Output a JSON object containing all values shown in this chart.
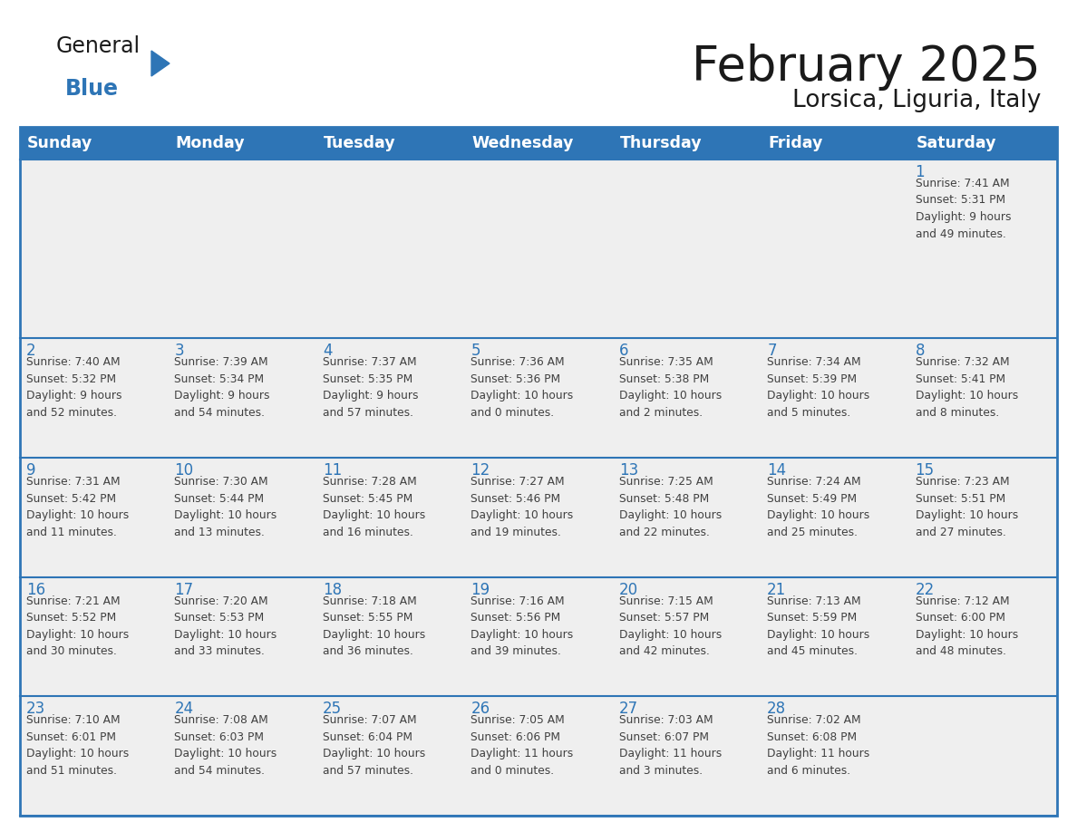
{
  "title": "February 2025",
  "subtitle": "Lorsica, Liguria, Italy",
  "days_of_week": [
    "Sunday",
    "Monday",
    "Tuesday",
    "Wednesday",
    "Thursday",
    "Friday",
    "Saturday"
  ],
  "header_bg": "#2E75B6",
  "header_text": "#FFFFFF",
  "cell_bg": "#EFEFEF",
  "cell_bg_white": "#FFFFFF",
  "border_color": "#2E75B6",
  "day_number_color": "#2E75B6",
  "info_text_color": "#404040",
  "title_color": "#1a1a1a",
  "weeks": [
    [
      {
        "day": null,
        "info": ""
      },
      {
        "day": null,
        "info": ""
      },
      {
        "day": null,
        "info": ""
      },
      {
        "day": null,
        "info": ""
      },
      {
        "day": null,
        "info": ""
      },
      {
        "day": null,
        "info": ""
      },
      {
        "day": 1,
        "info": "Sunrise: 7:41 AM\nSunset: 5:31 PM\nDaylight: 9 hours\nand 49 minutes."
      }
    ],
    [
      {
        "day": 2,
        "info": "Sunrise: 7:40 AM\nSunset: 5:32 PM\nDaylight: 9 hours\nand 52 minutes."
      },
      {
        "day": 3,
        "info": "Sunrise: 7:39 AM\nSunset: 5:34 PM\nDaylight: 9 hours\nand 54 minutes."
      },
      {
        "day": 4,
        "info": "Sunrise: 7:37 AM\nSunset: 5:35 PM\nDaylight: 9 hours\nand 57 minutes."
      },
      {
        "day": 5,
        "info": "Sunrise: 7:36 AM\nSunset: 5:36 PM\nDaylight: 10 hours\nand 0 minutes."
      },
      {
        "day": 6,
        "info": "Sunrise: 7:35 AM\nSunset: 5:38 PM\nDaylight: 10 hours\nand 2 minutes."
      },
      {
        "day": 7,
        "info": "Sunrise: 7:34 AM\nSunset: 5:39 PM\nDaylight: 10 hours\nand 5 minutes."
      },
      {
        "day": 8,
        "info": "Sunrise: 7:32 AM\nSunset: 5:41 PM\nDaylight: 10 hours\nand 8 minutes."
      }
    ],
    [
      {
        "day": 9,
        "info": "Sunrise: 7:31 AM\nSunset: 5:42 PM\nDaylight: 10 hours\nand 11 minutes."
      },
      {
        "day": 10,
        "info": "Sunrise: 7:30 AM\nSunset: 5:44 PM\nDaylight: 10 hours\nand 13 minutes."
      },
      {
        "day": 11,
        "info": "Sunrise: 7:28 AM\nSunset: 5:45 PM\nDaylight: 10 hours\nand 16 minutes."
      },
      {
        "day": 12,
        "info": "Sunrise: 7:27 AM\nSunset: 5:46 PM\nDaylight: 10 hours\nand 19 minutes."
      },
      {
        "day": 13,
        "info": "Sunrise: 7:25 AM\nSunset: 5:48 PM\nDaylight: 10 hours\nand 22 minutes."
      },
      {
        "day": 14,
        "info": "Sunrise: 7:24 AM\nSunset: 5:49 PM\nDaylight: 10 hours\nand 25 minutes."
      },
      {
        "day": 15,
        "info": "Sunrise: 7:23 AM\nSunset: 5:51 PM\nDaylight: 10 hours\nand 27 minutes."
      }
    ],
    [
      {
        "day": 16,
        "info": "Sunrise: 7:21 AM\nSunset: 5:52 PM\nDaylight: 10 hours\nand 30 minutes."
      },
      {
        "day": 17,
        "info": "Sunrise: 7:20 AM\nSunset: 5:53 PM\nDaylight: 10 hours\nand 33 minutes."
      },
      {
        "day": 18,
        "info": "Sunrise: 7:18 AM\nSunset: 5:55 PM\nDaylight: 10 hours\nand 36 minutes."
      },
      {
        "day": 19,
        "info": "Sunrise: 7:16 AM\nSunset: 5:56 PM\nDaylight: 10 hours\nand 39 minutes."
      },
      {
        "day": 20,
        "info": "Sunrise: 7:15 AM\nSunset: 5:57 PM\nDaylight: 10 hours\nand 42 minutes."
      },
      {
        "day": 21,
        "info": "Sunrise: 7:13 AM\nSunset: 5:59 PM\nDaylight: 10 hours\nand 45 minutes."
      },
      {
        "day": 22,
        "info": "Sunrise: 7:12 AM\nSunset: 6:00 PM\nDaylight: 10 hours\nand 48 minutes."
      }
    ],
    [
      {
        "day": 23,
        "info": "Sunrise: 7:10 AM\nSunset: 6:01 PM\nDaylight: 10 hours\nand 51 minutes."
      },
      {
        "day": 24,
        "info": "Sunrise: 7:08 AM\nSunset: 6:03 PM\nDaylight: 10 hours\nand 54 minutes."
      },
      {
        "day": 25,
        "info": "Sunrise: 7:07 AM\nSunset: 6:04 PM\nDaylight: 10 hours\nand 57 minutes."
      },
      {
        "day": 26,
        "info": "Sunrise: 7:05 AM\nSunset: 6:06 PM\nDaylight: 11 hours\nand 0 minutes."
      },
      {
        "day": 27,
        "info": "Sunrise: 7:03 AM\nSunset: 6:07 PM\nDaylight: 11 hours\nand 3 minutes."
      },
      {
        "day": 28,
        "info": "Sunrise: 7:02 AM\nSunset: 6:08 PM\nDaylight: 11 hours\nand 6 minutes."
      },
      {
        "day": null,
        "info": ""
      }
    ]
  ],
  "logo_general_color": "#1a1a1a",
  "logo_blue_color": "#2E75B6",
  "fig_width": 11.88,
  "fig_height": 9.18,
  "dpi": 100
}
